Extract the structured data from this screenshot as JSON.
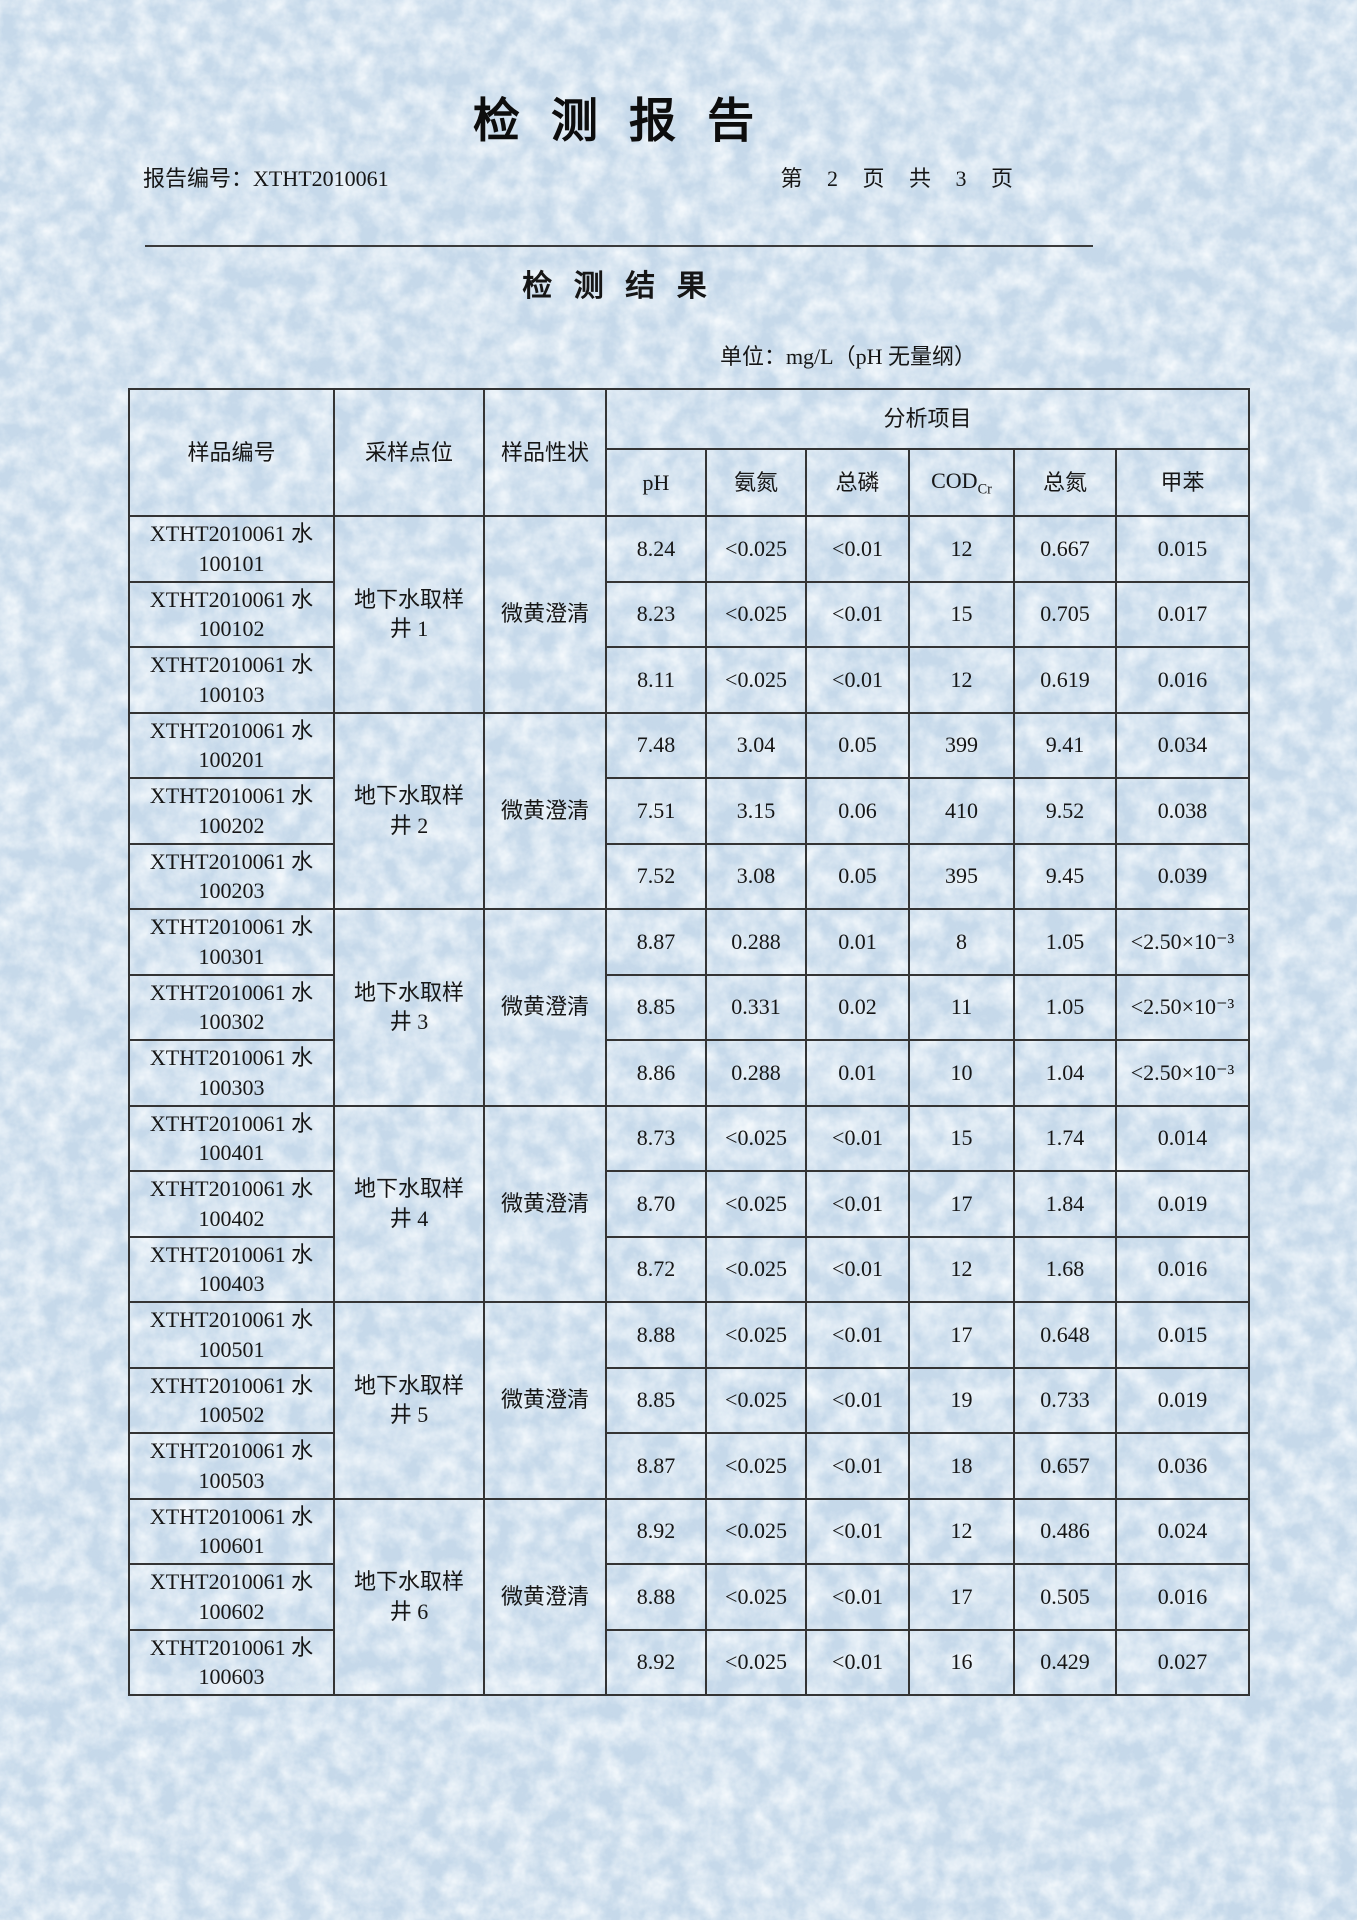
{
  "page": {
    "title": "检 测 报 告",
    "report_no_label": "报告编号：",
    "report_no": "XTHT2010061",
    "pagination": "第 2 页 共 3 页",
    "section_title": "检 测 结 果",
    "unit_note": "单位：mg/L（pH 无量纲）"
  },
  "table": {
    "header": {
      "sample_id": "样品编号",
      "sampling_point": "采样点位",
      "sample_character": "样品性状",
      "analysis_group": "分析项目",
      "analysis_items": [
        {
          "label": "pH"
        },
        {
          "label": "氨氮"
        },
        {
          "label": "总磷"
        },
        {
          "label": "COD",
          "sub": "Cr"
        },
        {
          "label": "总氮"
        },
        {
          "label": "甲苯"
        }
      ]
    },
    "groups": [
      {
        "sampling_point": "地下水取样\n井 1",
        "character": "微黄澄清",
        "rows": [
          {
            "id": "XTHT2010061 水\n100101",
            "values": [
              "8.24",
              "<0.025",
              "<0.01",
              "12",
              "0.667",
              "0.015"
            ]
          },
          {
            "id": "XTHT2010061 水\n100102",
            "values": [
              "8.23",
              "<0.025",
              "<0.01",
              "15",
              "0.705",
              "0.017"
            ]
          },
          {
            "id": "XTHT2010061 水\n100103",
            "values": [
              "8.11",
              "<0.025",
              "<0.01",
              "12",
              "0.619",
              "0.016"
            ]
          }
        ]
      },
      {
        "sampling_point": "地下水取样\n井 2",
        "character": "微黄澄清",
        "rows": [
          {
            "id": "XTHT2010061 水\n100201",
            "values": [
              "7.48",
              "3.04",
              "0.05",
              "399",
              "9.41",
              "0.034"
            ]
          },
          {
            "id": "XTHT2010061 水\n100202",
            "values": [
              "7.51",
              "3.15",
              "0.06",
              "410",
              "9.52",
              "0.038"
            ]
          },
          {
            "id": "XTHT2010061 水\n100203",
            "values": [
              "7.52",
              "3.08",
              "0.05",
              "395",
              "9.45",
              "0.039"
            ]
          }
        ]
      },
      {
        "sampling_point": "地下水取样\n井 3",
        "character": "微黄澄清",
        "rows": [
          {
            "id": "XTHT2010061 水\n100301",
            "values": [
              "8.87",
              "0.288",
              "0.01",
              "8",
              "1.05",
              "<2.50×10⁻³"
            ]
          },
          {
            "id": "XTHT2010061 水\n100302",
            "values": [
              "8.85",
              "0.331",
              "0.02",
              "11",
              "1.05",
              "<2.50×10⁻³"
            ]
          },
          {
            "id": "XTHT2010061 水\n100303",
            "values": [
              "8.86",
              "0.288",
              "0.01",
              "10",
              "1.04",
              "<2.50×10⁻³"
            ]
          }
        ]
      },
      {
        "sampling_point": "地下水取样\n井 4",
        "character": "微黄澄清",
        "rows": [
          {
            "id": "XTHT2010061 水\n100401",
            "values": [
              "8.73",
              "<0.025",
              "<0.01",
              "15",
              "1.74",
              "0.014"
            ]
          },
          {
            "id": "XTHT2010061 水\n100402",
            "values": [
              "8.70",
              "<0.025",
              "<0.01",
              "17",
              "1.84",
              "0.019"
            ]
          },
          {
            "id": "XTHT2010061 水\n100403",
            "values": [
              "8.72",
              "<0.025",
              "<0.01",
              "12",
              "1.68",
              "0.016"
            ]
          }
        ]
      },
      {
        "sampling_point": "地下水取样\n井 5",
        "character": "微黄澄清",
        "rows": [
          {
            "id": "XTHT2010061 水\n100501",
            "values": [
              "8.88",
              "<0.025",
              "<0.01",
              "17",
              "0.648",
              "0.015"
            ]
          },
          {
            "id": "XTHT2010061 水\n100502",
            "values": [
              "8.85",
              "<0.025",
              "<0.01",
              "19",
              "0.733",
              "0.019"
            ]
          },
          {
            "id": "XTHT2010061 水\n100503",
            "values": [
              "8.87",
              "<0.025",
              "<0.01",
              "18",
              "0.657",
              "0.036"
            ]
          }
        ]
      },
      {
        "sampling_point": "地下水取样\n井 6",
        "character": "微黄澄清",
        "rows": [
          {
            "id": "XTHT2010061 水\n100601",
            "values": [
              "8.92",
              "<0.025",
              "<0.01",
              "12",
              "0.486",
              "0.024"
            ]
          },
          {
            "id": "XTHT2010061 水\n100602",
            "values": [
              "8.88",
              "<0.025",
              "<0.01",
              "17",
              "0.505",
              "0.016"
            ]
          },
          {
            "id": "XTHT2010061 水\n100603",
            "values": [
              "8.92",
              "<0.025",
              "<0.01",
              "16",
              "0.429",
              "0.027"
            ]
          }
        ]
      }
    ]
  }
}
